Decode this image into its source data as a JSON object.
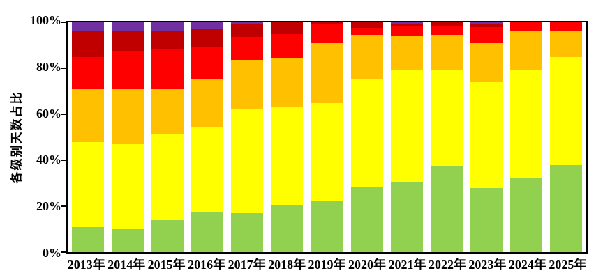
{
  "chart_data": {
    "type": "bar",
    "stacked": true,
    "title": "",
    "xlabel": "",
    "ylabel": "各级别天数占比",
    "ylim": [
      0,
      100
    ],
    "grid": false,
    "legend": "none",
    "axis_color": "#000000",
    "background_color": "#ffffff",
    "yticks": [
      "0%",
      "20%",
      "40%",
      "60%",
      "80%",
      "100%"
    ],
    "ytick_values": [
      0,
      20,
      40,
      60,
      80,
      100
    ],
    "categories": [
      "2013年",
      "2014年",
      "2015年",
      "2016年",
      "2017年",
      "2018年",
      "2019年",
      "2020年",
      "2021年",
      "2022年",
      "2023年",
      "2024年",
      "2025年"
    ],
    "series": [
      {
        "name": "green",
        "color": "#92D050",
        "values": [
          11,
          10,
          14,
          17.5,
          17,
          20.5,
          22.5,
          28.5,
          30.5,
          37.5,
          28,
          32,
          38
        ]
      },
      {
        "name": "yellow",
        "color": "#FFFF00",
        "values": [
          37,
          37,
          37.5,
          37,
          45,
          42.5,
          42.5,
          47,
          48.5,
          42,
          46,
          47.5,
          47
        ]
      },
      {
        "name": "orange",
        "color": "#FFC000",
        "values": [
          23,
          24,
          19.5,
          21,
          21.5,
          21.5,
          26,
          19,
          15,
          15,
          17,
          16.5,
          11
        ]
      },
      {
        "name": "red",
        "color": "#FF0000",
        "values": [
          14,
          16.5,
          17.5,
          14,
          10,
          10.5,
          8,
          3,
          4.5,
          4,
          7,
          4,
          4
        ]
      },
      {
        "name": "dark-red",
        "color": "#C00000",
        "values": [
          11.5,
          9,
          7.5,
          7.5,
          5.5,
          5,
          1,
          2.5,
          1,
          1.5,
          1.2,
          0,
          0
        ]
      },
      {
        "name": "purple",
        "color": "#7030A0",
        "values": [
          3.5,
          3.5,
          4,
          3,
          1,
          0,
          0,
          0,
          0.5,
          0,
          0.8,
          0,
          0
        ]
      }
    ]
  }
}
